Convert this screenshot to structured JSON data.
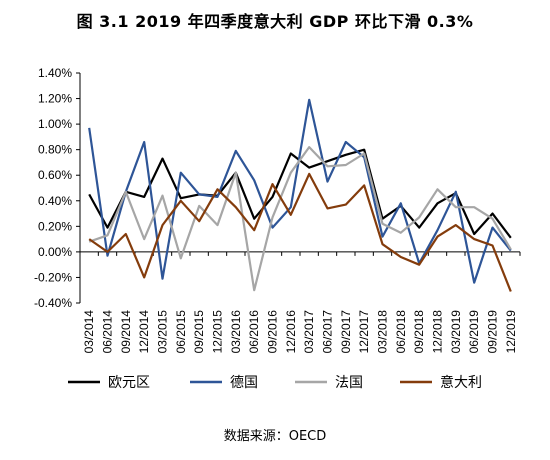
{
  "title": "图 3.1 2019 年四季度意大利 GDP 环比下滑 0.3%",
  "source": "数据来源：OECD",
  "chart_data": {
    "type": "line",
    "x": [
      "03/2014",
      "06/2014",
      "09/2014",
      "12/2014",
      "03/2015",
      "06/2015",
      "09/2015",
      "12/2015",
      "03/2016",
      "06/2016",
      "09/2016",
      "12/2016",
      "03/2017",
      "06/2017",
      "09/2017",
      "12/2017",
      "03/2018",
      "06/2018",
      "09/2018",
      "12/2018",
      "03/2019",
      "06/2019",
      "09/2019",
      "12/2019"
    ],
    "ylim": [
      -0.4,
      1.4
    ],
    "yticks": [
      "-0.40%",
      "-0.20%",
      "0.00%",
      "0.20%",
      "0.40%",
      "0.60%",
      "0.80%",
      "1.00%",
      "1.20%",
      "1.40%"
    ],
    "ytick_values": [
      -0.4,
      -0.2,
      0,
      0.2,
      0.4,
      0.6,
      0.8,
      1.0,
      1.2,
      1.4
    ],
    "legend_position": "bottom",
    "grid": false,
    "series": [
      {
        "name": "欧元区",
        "color": "#000000",
        "values": [
          0.45,
          0.19,
          0.47,
          0.43,
          0.73,
          0.42,
          0.45,
          0.44,
          0.62,
          0.26,
          0.43,
          0.77,
          0.66,
          0.71,
          0.76,
          0.8,
          0.26,
          0.36,
          0.19,
          0.38,
          0.46,
          0.14,
          0.3,
          0.11
        ]
      },
      {
        "name": "德国",
        "color": "#2e5597",
        "values": [
          0.97,
          -0.03,
          0.47,
          0.86,
          -0.21,
          0.62,
          0.45,
          0.43,
          0.79,
          0.56,
          0.19,
          0.35,
          1.19,
          0.55,
          0.86,
          0.74,
          0.12,
          0.38,
          -0.09,
          0.17,
          0.47,
          -0.24,
          0.19,
          0.01
        ]
      },
      {
        "name": "法国",
        "color": "#a6a6a6",
        "values": [
          0.08,
          0.13,
          0.47,
          0.1,
          0.44,
          -0.05,
          0.36,
          0.21,
          0.62,
          -0.3,
          0.27,
          0.62,
          0.82,
          0.67,
          0.68,
          0.77,
          0.22,
          0.15,
          0.27,
          0.49,
          0.35,
          0.35,
          0.26,
          0.02
        ]
      },
      {
        "name": "意大利",
        "color": "#843c0c",
        "values": [
          0.1,
          0.0,
          0.14,
          -0.2,
          0.21,
          0.4,
          0.24,
          0.49,
          0.35,
          0.17,
          0.53,
          0.29,
          0.61,
          0.34,
          0.37,
          0.52,
          0.06,
          -0.04,
          -0.1,
          0.12,
          0.21,
          0.1,
          0.05,
          -0.31
        ]
      }
    ]
  }
}
